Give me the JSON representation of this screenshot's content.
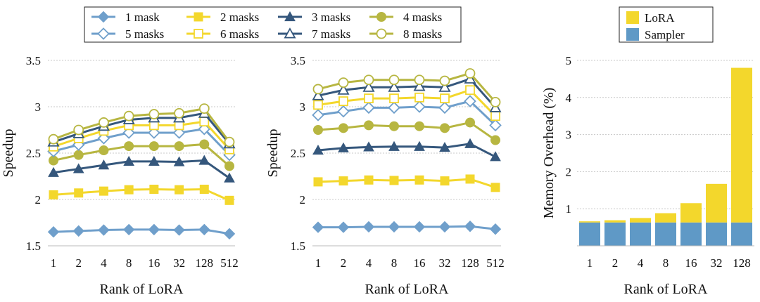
{
  "chart_data": [
    {
      "type": "line",
      "title": "",
      "xlabel": "Rank of LoRA",
      "ylabel": "Speedup",
      "categories": [
        "1",
        "2",
        "4",
        "8",
        "16",
        "32",
        "128",
        "512"
      ],
      "ylim": [
        1.5,
        3.5
      ],
      "yticks": [
        "1.5",
        "2",
        "2.5",
        "3",
        "3.5"
      ],
      "grid": true,
      "series": [
        {
          "name": "1 mask",
          "values": [
            1.65,
            1.66,
            1.67,
            1.675,
            1.675,
            1.67,
            1.675,
            1.63
          ]
        },
        {
          "name": "2 masks",
          "values": [
            2.05,
            2.07,
            2.09,
            2.105,
            2.11,
            2.105,
            2.11,
            1.99
          ]
        },
        {
          "name": "3 masks",
          "values": [
            2.29,
            2.33,
            2.37,
            2.41,
            2.41,
            2.405,
            2.42,
            2.23
          ]
        },
        {
          "name": "4 masks",
          "values": [
            2.42,
            2.48,
            2.53,
            2.575,
            2.575,
            2.575,
            2.595,
            2.36
          ]
        },
        {
          "name": "5 masks",
          "values": [
            2.52,
            2.59,
            2.66,
            2.72,
            2.72,
            2.72,
            2.76,
            2.48
          ]
        },
        {
          "name": "6 masks",
          "values": [
            2.57,
            2.66,
            2.74,
            2.8,
            2.8,
            2.8,
            2.84,
            2.54
          ]
        },
        {
          "name": "7 masks",
          "values": [
            2.62,
            2.71,
            2.79,
            2.86,
            2.88,
            2.88,
            2.93,
            2.6
          ]
        },
        {
          "name": "8 masks",
          "values": [
            2.65,
            2.75,
            2.83,
            2.9,
            2.92,
            2.93,
            2.98,
            2.62
          ]
        }
      ]
    },
    {
      "type": "line",
      "title": "",
      "xlabel": "Rank of LoRA",
      "ylabel": "Speedup",
      "categories": [
        "1",
        "2",
        "4",
        "8",
        "16",
        "32",
        "128",
        "512"
      ],
      "ylim": [
        1.5,
        3.5
      ],
      "yticks": [
        "1.5",
        "2",
        "2.5",
        "3",
        "3.5"
      ],
      "grid": true,
      "series": [
        {
          "name": "1 mask",
          "values": [
            1.7,
            1.7,
            1.705,
            1.705,
            1.705,
            1.705,
            1.71,
            1.68
          ]
        },
        {
          "name": "2 masks",
          "values": [
            2.19,
            2.2,
            2.21,
            2.205,
            2.21,
            2.2,
            2.22,
            2.13
          ]
        },
        {
          "name": "3 masks",
          "values": [
            2.53,
            2.555,
            2.565,
            2.57,
            2.57,
            2.56,
            2.6,
            2.46
          ]
        },
        {
          "name": "4 masks",
          "values": [
            2.75,
            2.77,
            2.8,
            2.79,
            2.79,
            2.77,
            2.83,
            2.64
          ]
        },
        {
          "name": "5 masks",
          "values": [
            2.91,
            2.95,
            2.99,
            2.99,
            3.0,
            2.99,
            3.06,
            2.8
          ]
        },
        {
          "name": "6 masks",
          "values": [
            3.02,
            3.06,
            3.09,
            3.09,
            3.1,
            3.09,
            3.18,
            2.9
          ]
        },
        {
          "name": "7 masks",
          "values": [
            3.12,
            3.18,
            3.21,
            3.21,
            3.22,
            3.21,
            3.3,
            2.99
          ]
        },
        {
          "name": "8 masks",
          "values": [
            3.19,
            3.26,
            3.29,
            3.29,
            3.29,
            3.28,
            3.36,
            3.05
          ]
        }
      ]
    },
    {
      "type": "bar",
      "stacked": true,
      "title": "",
      "xlabel": "Rank of LoRA",
      "ylabel": "Memory Overhead (%)",
      "categories": [
        "1",
        "2",
        "4",
        "8",
        "16",
        "32",
        "128"
      ],
      "ylim": [
        0,
        5
      ],
      "yticks": [
        "0",
        "1",
        "2",
        "3",
        "4",
        "5"
      ],
      "grid": true,
      "series": [
        {
          "name": "Sampler",
          "values": [
            0.63,
            0.63,
            0.63,
            0.63,
            0.63,
            0.63,
            0.63
          ]
        },
        {
          "name": "LoRA",
          "values": [
            0.03,
            0.06,
            0.12,
            0.25,
            0.52,
            1.04,
            4.17
          ]
        }
      ],
      "legend": [
        "LoRA",
        "Sampler"
      ]
    }
  ],
  "colors": {
    "mask1": "#6f9fcb",
    "mask2": "#f3d72c",
    "mask3": "#35577c",
    "mask4": "#b7b641",
    "lora": "#f3d72c",
    "sampler": "#5f99c6",
    "grid": "#c8c8c8"
  },
  "icons": {
    "mask1": "diamond-filled",
    "mask2": "square-filled",
    "mask3": "triangle-filled",
    "mask4": "circle-filled",
    "mask5": "diamond-open",
    "mask6": "square-open",
    "mask7": "triangle-open",
    "mask8": "circle-open"
  }
}
